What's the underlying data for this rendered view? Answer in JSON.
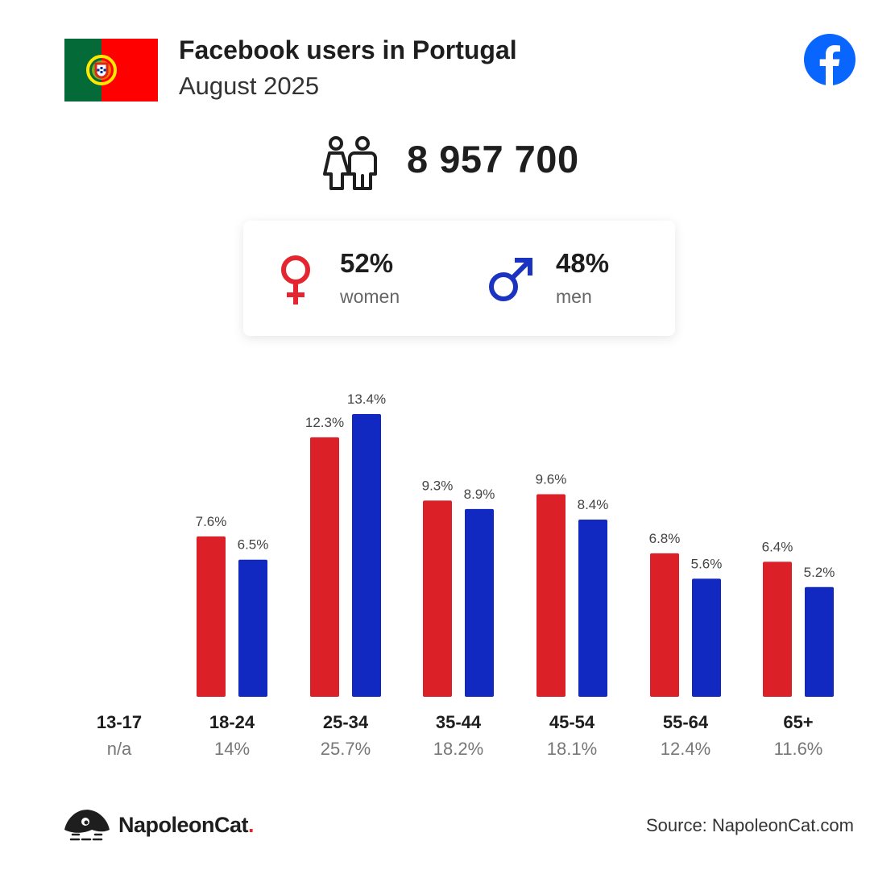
{
  "header": {
    "title": "Facebook users in Portugal",
    "subtitle": "August 2025",
    "flag_colors": [
      "#046a38",
      "#da291c",
      "#ffe900"
    ],
    "platform_icon": "facebook-icon"
  },
  "summary": {
    "total_users": "8 957 700",
    "icon": "users-icon"
  },
  "gender": {
    "women": {
      "pct": "52%",
      "label": "women",
      "color": "#e3262f",
      "icon": "female-symbol-icon"
    },
    "men": {
      "pct": "48%",
      "label": "men",
      "color": "#1a33c0",
      "icon": "male-symbol-icon"
    }
  },
  "chart_data": {
    "type": "bar",
    "categories": [
      "13-17",
      "18-24",
      "25-34",
      "35-44",
      "45-54",
      "55-64",
      "65+"
    ],
    "category_shares": [
      "n/a",
      "14%",
      "25.7%",
      "18.2%",
      "18.1%",
      "12.4%",
      "11.6%"
    ],
    "series": [
      {
        "key": "women",
        "color": "#dc2027",
        "values": [
          null,
          7.6,
          12.3,
          9.3,
          9.6,
          6.8,
          6.4
        ],
        "labels": [
          null,
          "7.6%",
          "12.3%",
          "9.3%",
          "9.6%",
          "6.8%",
          "6.4%"
        ]
      },
      {
        "key": "men",
        "color": "#1129c0",
        "values": [
          null,
          6.5,
          13.4,
          8.9,
          8.4,
          5.6,
          5.2
        ],
        "labels": [
          null,
          "6.5%",
          "13.4%",
          "8.9%",
          "8.4%",
          "5.6%",
          "5.2%"
        ]
      }
    ],
    "ylim": [
      0,
      13.4
    ],
    "grid": false
  },
  "footer": {
    "brand_name": "NapoleonCat",
    "brand_dot": ".",
    "source": "Source: NapoleonCat.com"
  }
}
